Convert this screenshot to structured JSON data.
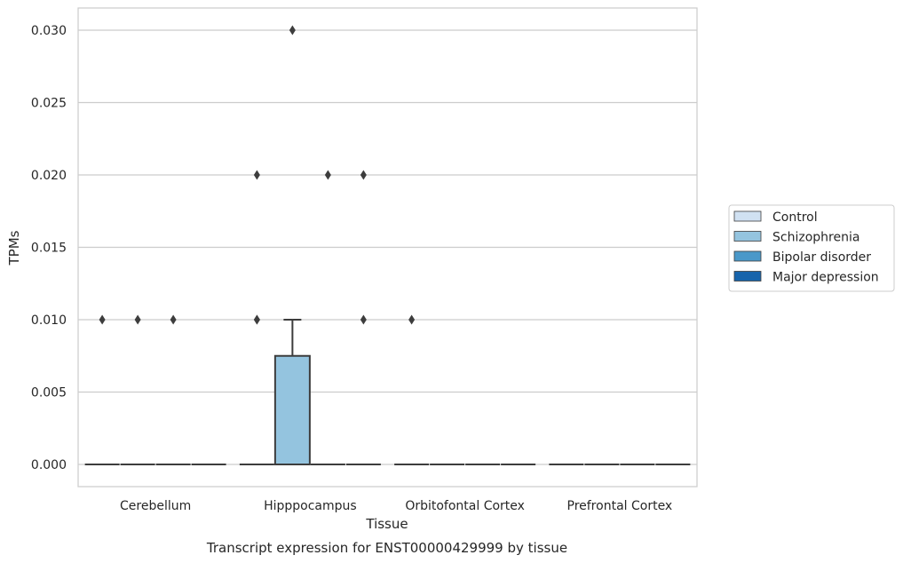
{
  "chart_data": {
    "type": "box",
    "xlabel": "Tissue",
    "ylabel": "TPMs",
    "caption": "Transcript expression for ENST00000429999 by tissue",
    "ylim": [
      -0.0015,
      0.0315
    ],
    "yticks": [
      "0.000",
      "0.005",
      "0.010",
      "0.015",
      "0.020",
      "0.025",
      "0.030"
    ],
    "grid": "horizontal",
    "legend_placement": "right",
    "categories": [
      "Cerebellum",
      "Hipppocampus",
      "Orbitofontal Cortex",
      "Prefrontal Cortex"
    ],
    "series": [
      {
        "name": "Control",
        "color": "#d0e1f2",
        "boxes": [
          {
            "q1": 0,
            "median": 0,
            "q3": 0,
            "whislo": 0,
            "whishi": 0,
            "fliers": [
              0.01
            ]
          },
          {
            "q1": 0,
            "median": 0,
            "q3": 0,
            "whislo": 0,
            "whishi": 0,
            "fliers": [
              0.01,
              0.01,
              0.02
            ]
          },
          {
            "q1": 0,
            "median": 0,
            "q3": 0,
            "whislo": 0,
            "whishi": 0,
            "fliers": [
              0.01
            ]
          },
          {
            "q1": 0,
            "median": 0,
            "q3": 0,
            "whislo": 0,
            "whishi": 0,
            "fliers": []
          }
        ]
      },
      {
        "name": "Schizophrenia",
        "color": "#94c4df",
        "boxes": [
          {
            "q1": 0,
            "median": 0,
            "q3": 0,
            "whislo": 0,
            "whishi": 0,
            "fliers": [
              0.01
            ]
          },
          {
            "q1": 0,
            "median": 0,
            "q3": 0.0075,
            "whislo": 0,
            "whishi": 0.01,
            "fliers": [
              0.03
            ]
          },
          {
            "q1": 0,
            "median": 0,
            "q3": 0,
            "whislo": 0,
            "whishi": 0,
            "fliers": []
          },
          {
            "q1": 0,
            "median": 0,
            "q3": 0,
            "whislo": 0,
            "whishi": 0,
            "fliers": []
          }
        ]
      },
      {
        "name": "Bipolar disorder",
        "color": "#4a98c9",
        "boxes": [
          {
            "q1": 0,
            "median": 0,
            "q3": 0,
            "whislo": 0,
            "whishi": 0,
            "fliers": [
              0.01
            ]
          },
          {
            "q1": 0,
            "median": 0,
            "q3": 0,
            "whislo": 0,
            "whishi": 0,
            "fliers": [
              0.02
            ]
          },
          {
            "q1": 0,
            "median": 0,
            "q3": 0,
            "whislo": 0,
            "whishi": 0,
            "fliers": []
          },
          {
            "q1": 0,
            "median": 0,
            "q3": 0,
            "whislo": 0,
            "whishi": 0,
            "fliers": []
          }
        ]
      },
      {
        "name": "Major depression",
        "color": "#1764ab",
        "boxes": [
          {
            "q1": 0,
            "median": 0,
            "q3": 0,
            "whislo": 0,
            "whishi": 0,
            "fliers": []
          },
          {
            "q1": 0,
            "median": 0,
            "q3": 0,
            "whislo": 0,
            "whishi": 0,
            "fliers": [
              0.01,
              0.02
            ]
          },
          {
            "q1": 0,
            "median": 0,
            "q3": 0,
            "whislo": 0,
            "whishi": 0,
            "fliers": []
          },
          {
            "q1": 0,
            "median": 0,
            "q3": 0,
            "whislo": 0,
            "whishi": 0,
            "fliers": []
          }
        ]
      }
    ]
  }
}
